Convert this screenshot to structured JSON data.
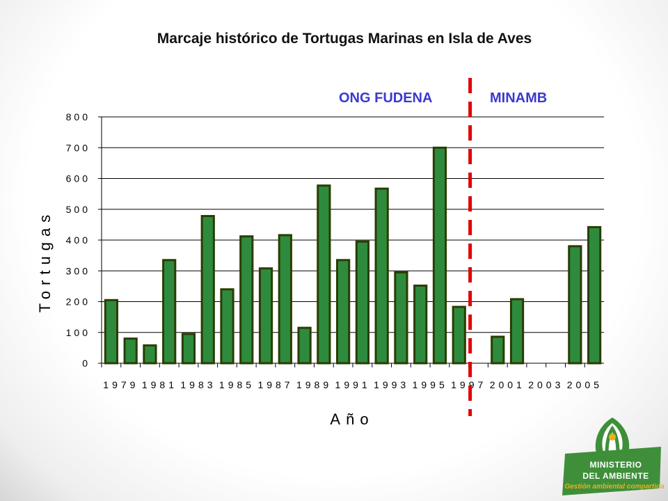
{
  "title": "Marcaje histórico de Tortugas Marinas en Isla de Aves",
  "periods": {
    "left": "ONG FUDENA",
    "right": "MINAMB"
  },
  "colors": {
    "bar_fill": "#2e8b3e",
    "bar_stroke": "#2a3d00",
    "divider": "#e00000",
    "period_text": "#3a3ad0",
    "logo_green": "#3f8f3a",
    "logo_gold": "#e8b020"
  },
  "logo": {
    "line1": "MINISTERIO",
    "line2": "DEL AMBIENTE",
    "tagline": "Gestión ambiental compartida",
    "icon": "ministry-emblem-icon"
  },
  "chart_data": {
    "type": "bar",
    "title": "Marcaje histórico de Tortugas Marinas en Isla de Aves",
    "xlabel": "Año",
    "ylabel": "Tortugas",
    "ylim": [
      0,
      800
    ],
    "yticks": [
      "0",
      "100",
      "200",
      "300",
      "400",
      "500",
      "600",
      "700",
      "800"
    ],
    "grid": "horizontal",
    "categories": [
      "1979",
      "1980",
      "1981",
      "1982",
      "1983",
      "1984",
      "1985",
      "1986",
      "1987",
      "1988",
      "1989",
      "1990",
      "1991",
      "1992",
      "1993",
      "1994",
      "1995",
      "1996",
      "1997",
      "2000",
      "2001",
      "2002",
      "2003",
      "2004",
      "2005",
      "2006"
    ],
    "xtick_labels": [
      "1979",
      "1981",
      "1983",
      "1985",
      "1987",
      "1989",
      "1991",
      "1993",
      "1995",
      "1997",
      "2001",
      "2003",
      "2005"
    ],
    "values": [
      205,
      80,
      58,
      335,
      95,
      478,
      240,
      412,
      308,
      416,
      115,
      577,
      335,
      395,
      567,
      295,
      252,
      700,
      183,
      0,
      86,
      208,
      0,
      0,
      380,
      442
    ],
    "divider_after_category": "1997"
  }
}
